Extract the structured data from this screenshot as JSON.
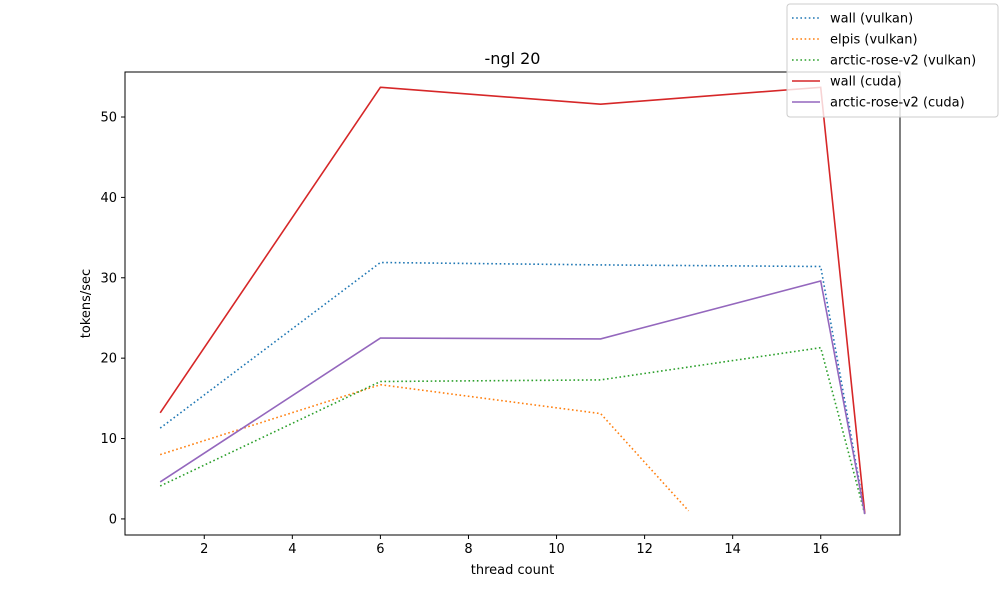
{
  "chart_data": {
    "type": "line",
    "title": "-ngl 20",
    "xlabel": "thread count",
    "ylabel": "tokens/sec",
    "xlim": [
      0.2,
      17.8
    ],
    "ylim": [
      -2,
      55.6
    ],
    "xticks": [
      2,
      4,
      6,
      8,
      10,
      12,
      14,
      16
    ],
    "yticks": [
      0,
      10,
      20,
      30,
      40,
      50
    ],
    "grid": false,
    "legend_position": "top-right",
    "series": [
      {
        "name": "wall (vulkan)",
        "color": "#1f77b4",
        "style": "dotted",
        "x": [
          1,
          6,
          11,
          16,
          17
        ],
        "y": [
          11.3,
          31.9,
          31.6,
          31.4,
          0.8
        ]
      },
      {
        "name": "elpis (vulkan)",
        "color": "#ff7f0e",
        "style": "dotted",
        "x": [
          1,
          6,
          11,
          13
        ],
        "y": [
          8.0,
          16.7,
          13.1,
          1.0
        ]
      },
      {
        "name": "arctic-rose-v2 (vulkan)",
        "color": "#2ca02c",
        "style": "dotted",
        "x": [
          1,
          6,
          11,
          16,
          17
        ],
        "y": [
          4.1,
          17.1,
          17.3,
          21.3,
          0.6
        ]
      },
      {
        "name": "wall (cuda)",
        "color": "#d62728",
        "style": "solid",
        "x": [
          1,
          6,
          11,
          16,
          17
        ],
        "y": [
          13.2,
          53.7,
          51.6,
          53.7,
          0.7
        ]
      },
      {
        "name": "arctic-rose-v2 (cuda)",
        "color": "#9467bd",
        "style": "solid",
        "x": [
          1,
          6,
          11,
          16,
          17
        ],
        "y": [
          4.6,
          22.5,
          22.4,
          29.6,
          0.6
        ]
      }
    ]
  }
}
